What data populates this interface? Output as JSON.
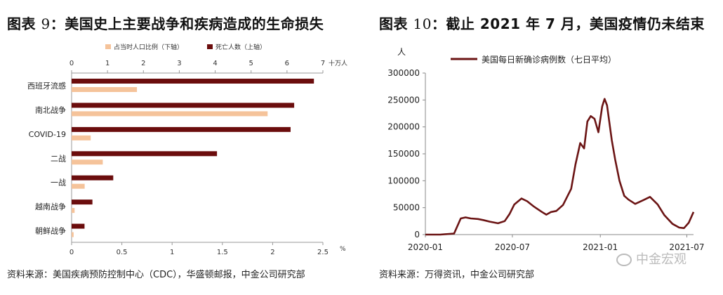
{
  "left": {
    "title_prefix": "图表 ",
    "title_num": "9",
    "title_text": "：美国史上主要战争和疾病造成的生命损失",
    "source": "资料来源：美国疾病预防控制中心（CDC），华盛顿邮报，中金公司研究部"
  },
  "right": {
    "title_prefix": "图表 ",
    "title_num": "10",
    "title_text": "：截止 2021 年 7 月，美国疫情仍未结束",
    "source": "资料来源：万得资讯，中金公司研究部"
  },
  "watermark": "中金宏观",
  "colors": {
    "deaths": "#6b0d0d",
    "share": "#f5c39a",
    "line": "#6b1414"
  },
  "chart_data": [
    {
      "type": "bar",
      "orientation": "horizontal",
      "categories": [
        "西班牙流感",
        "南北战争",
        "COVID-19",
        "二战",
        "一战",
        "越南战争",
        "朝鲜战争"
      ],
      "series": [
        {
          "name": "死亡人数（上轴）",
          "axis": "top",
          "values": [
            6.75,
            6.2,
            6.1,
            4.05,
            1.16,
            0.58,
            0.36
          ]
        },
        {
          "name": "占当时人口比例（下轴）",
          "axis": "bottom",
          "values": [
            0.65,
            1.95,
            0.19,
            0.31,
            0.13,
            0.03,
            0.02
          ]
        }
      ],
      "top_axis": {
        "min": 0,
        "max": 7,
        "ticks": [
          0,
          1,
          2,
          3,
          4,
          5,
          6,
          7
        ],
        "unit": "十万人"
      },
      "bottom_axis": {
        "min": 0,
        "max": 2.5,
        "ticks": [
          0,
          0.5,
          1,
          1.5,
          2,
          2.5
        ],
        "tick_labels": [
          "0",
          "0.5",
          "1",
          "1.5",
          "2",
          "2.5"
        ],
        "unit": "%"
      },
      "legend": "top-center",
      "grid": false
    },
    {
      "type": "line",
      "series": [
        {
          "name": "美国每日新确诊病例数（七日平均）",
          "x": [
            "2020-01-01",
            "2020-02-01",
            "2020-03-01",
            "2020-03-15",
            "2020-03-25",
            "2020-04-05",
            "2020-04-20",
            "2020-05-01",
            "2020-05-15",
            "2020-06-01",
            "2020-06-15",
            "2020-06-25",
            "2020-07-05",
            "2020-07-20",
            "2020-08-01",
            "2020-08-15",
            "2020-09-01",
            "2020-09-10",
            "2020-09-20",
            "2020-10-01",
            "2020-10-15",
            "2020-11-01",
            "2020-11-10",
            "2020-11-20",
            "2020-11-28",
            "2020-12-05",
            "2020-12-12",
            "2020-12-20",
            "2020-12-28",
            "2021-01-05",
            "2021-01-10",
            "2021-01-15",
            "2021-01-25",
            "2021-02-01",
            "2021-02-10",
            "2021-02-20",
            "2021-03-01",
            "2021-03-15",
            "2021-04-01",
            "2021-04-15",
            "2021-05-01",
            "2021-05-15",
            "2021-06-01",
            "2021-06-15",
            "2021-06-25",
            "2021-07-05",
            "2021-07-15"
          ],
          "y": [
            0,
            0,
            2000,
            30000,
            32000,
            30000,
            29000,
            27000,
            24000,
            21000,
            25000,
            38000,
            56000,
            67000,
            62000,
            52000,
            42000,
            37000,
            42000,
            44000,
            55000,
            85000,
            130000,
            170000,
            160000,
            210000,
            220000,
            215000,
            190000,
            238000,
            252000,
            240000,
            175000,
            140000,
            100000,
            72000,
            65000,
            57000,
            64000,
            70000,
            56000,
            36000,
            20000,
            13000,
            12000,
            22000,
            42000
          ]
        }
      ],
      "xlim": [
        "2020-01-01",
        "2021-07-15"
      ],
      "x_ticks": [
        "2020-01",
        "2020-07",
        "2021-01",
        "2021-07"
      ],
      "ylim": [
        0,
        300000
      ],
      "y_ticks": [
        0,
        50000,
        100000,
        150000,
        200000,
        250000,
        300000
      ],
      "ylabel": "人",
      "legend": "top-center",
      "grid": false
    }
  ]
}
